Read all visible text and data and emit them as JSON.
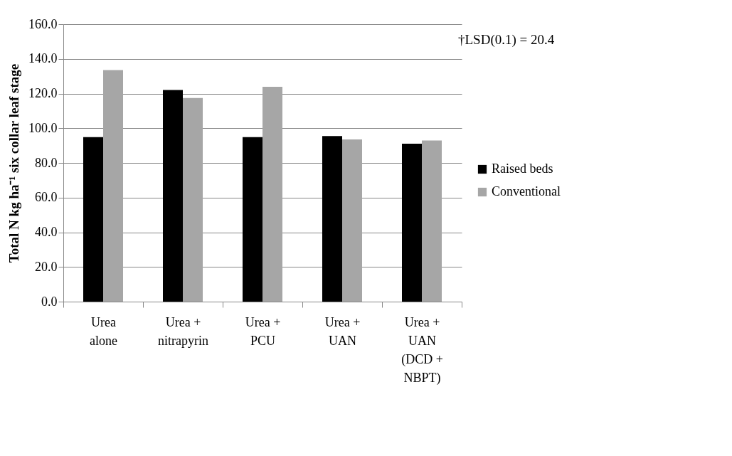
{
  "chart_data": {
    "type": "bar",
    "categories": [
      "Urea\nalone",
      "Urea +\nnitrapyrin",
      "Urea +\nPCU",
      "Urea +\nUAN",
      "Urea +\nUAN\n(DCD +\nNBPT)"
    ],
    "series": [
      {
        "name": "Raised beds",
        "color": "#000000",
        "values": [
          94.9,
          122.1,
          94.9,
          95.5,
          91.1
        ]
      },
      {
        "name": "Conventional",
        "color": "#a6a6a6",
        "values": [
          133.5,
          117.4,
          123.9,
          93.5,
          92.9
        ]
      }
    ],
    "ylabel": "Total N kg ha⁻¹ six collar leaf stage",
    "ylim": [
      0,
      160
    ],
    "yticks": [
      {
        "value": 0,
        "label": "0.0"
      },
      {
        "value": 20,
        "label": "20.0"
      },
      {
        "value": 40,
        "label": "40.0"
      },
      {
        "value": 60,
        "label": "60.0"
      },
      {
        "value": 80,
        "label": "80.0"
      },
      {
        "value": 100,
        "label": "100.0"
      },
      {
        "value": 120,
        "label": "120.0"
      },
      {
        "value": 140,
        "label": "140.0"
      },
      {
        "value": 160,
        "label": "160.0"
      }
    ],
    "annotations": [
      "†LSD(0.1) = 20.4"
    ],
    "grid": "y",
    "legend": "right"
  }
}
